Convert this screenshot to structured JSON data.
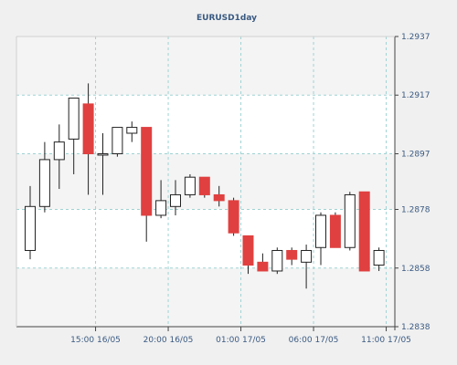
{
  "colors": {
    "page_bg": "#f0f0f0",
    "plot_bg": "#ffffff",
    "band_bg": "#f4f4f4",
    "grid": "#9fd3d3",
    "axis": "#444444",
    "bull_fill": "#ffffff",
    "bear_fill": "#e04040",
    "text": "#3a5a82"
  },
  "chart_data": {
    "type": "candlestick",
    "title": "EURUSD1day",
    "xlabel": "",
    "ylabel": "",
    "ylim": [
      1.2838,
      1.2937
    ],
    "grid": true,
    "y_ticks": [
      "1.2937",
      "1.2917",
      "1.2897",
      "1.2878",
      "1.2858",
      "1.2838"
    ],
    "x_ticks": [
      {
        "label": "15:00 16/05",
        "index": 4.5
      },
      {
        "label": "20:00 16/05",
        "index": 9.5
      },
      {
        "label": "01:00 17/05",
        "index": 14.5
      },
      {
        "label": "06:00 17/05",
        "index": 19.5
      },
      {
        "label": "11:00 17/05",
        "index": 24.5
      }
    ],
    "candles": [
      {
        "open": 1.2864,
        "high": 1.2886,
        "low": 1.2861,
        "close": 1.2879
      },
      {
        "open": 1.2879,
        "high": 1.2901,
        "low": 1.2877,
        "close": 1.2895
      },
      {
        "open": 1.2895,
        "high": 1.2907,
        "low": 1.2885,
        "close": 1.2901
      },
      {
        "open": 1.2902,
        "high": 1.2916,
        "low": 1.289,
        "close": 1.2916
      },
      {
        "open": 1.2914,
        "high": 1.2921,
        "low": 1.2883,
        "close": 1.2897
      },
      {
        "open": 1.2897,
        "high": 1.2904,
        "low": 1.2883,
        "close": 1.2897
      },
      {
        "open": 1.2897,
        "high": 1.2906,
        "low": 1.2896,
        "close": 1.2906
      },
      {
        "open": 1.2904,
        "high": 1.2908,
        "low": 1.2901,
        "close": 1.2906
      },
      {
        "open": 1.2906,
        "high": 1.2906,
        "low": 1.2867,
        "close": 1.2876
      },
      {
        "open": 1.2876,
        "high": 1.2888,
        "low": 1.2875,
        "close": 1.2881
      },
      {
        "open": 1.2879,
        "high": 1.2888,
        "low": 1.2876,
        "close": 1.2883
      },
      {
        "open": 1.2883,
        "high": 1.289,
        "low": 1.2882,
        "close": 1.2889
      },
      {
        "open": 1.2889,
        "high": 1.2889,
        "low": 1.2882,
        "close": 1.2883
      },
      {
        "open": 1.2883,
        "high": 1.2886,
        "low": 1.2879,
        "close": 1.2881
      },
      {
        "open": 1.2881,
        "high": 1.2882,
        "low": 1.2869,
        "close": 1.287
      },
      {
        "open": 1.2869,
        "high": 1.2869,
        "low": 1.2856,
        "close": 1.2859
      },
      {
        "open": 1.286,
        "high": 1.2863,
        "low": 1.2857,
        "close": 1.2857
      },
      {
        "open": 1.2857,
        "high": 1.2865,
        "low": 1.2856,
        "close": 1.2864
      },
      {
        "open": 1.2864,
        "high": 1.2865,
        "low": 1.2859,
        "close": 1.2861
      },
      {
        "open": 1.286,
        "high": 1.2866,
        "low": 1.2851,
        "close": 1.2864
      },
      {
        "open": 1.2865,
        "high": 1.2877,
        "low": 1.2859,
        "close": 1.2876
      },
      {
        "open": 1.2876,
        "high": 1.2877,
        "low": 1.2865,
        "close": 1.2865
      },
      {
        "open": 1.2865,
        "high": 1.2884,
        "low": 1.2864,
        "close": 1.2883
      },
      {
        "open": 1.2884,
        "high": 1.2884,
        "low": 1.2857,
        "close": 1.2857
      },
      {
        "open": 1.2859,
        "high": 1.2865,
        "low": 1.2857,
        "close": 1.2864
      }
    ]
  }
}
